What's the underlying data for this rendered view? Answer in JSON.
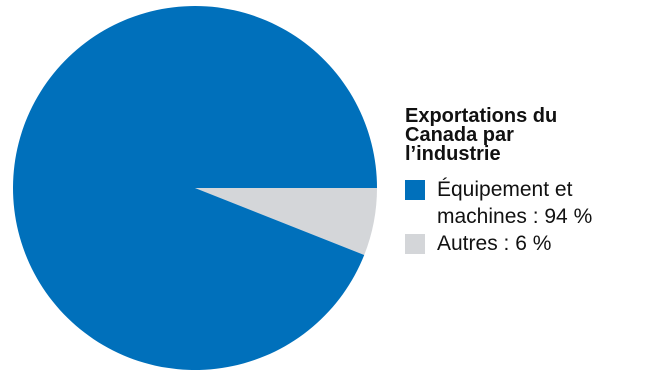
{
  "chart_data": {
    "type": "pie",
    "title": "Exportations du Canada par l’industrie",
    "slices": [
      {
        "label": "Équipement et machines : 94 %",
        "value": 94,
        "color": "#0070BB"
      },
      {
        "label": "Autres : 6 %",
        "value": 6,
        "color": "#D4D6D9"
      }
    ],
    "legend_position": "right"
  }
}
